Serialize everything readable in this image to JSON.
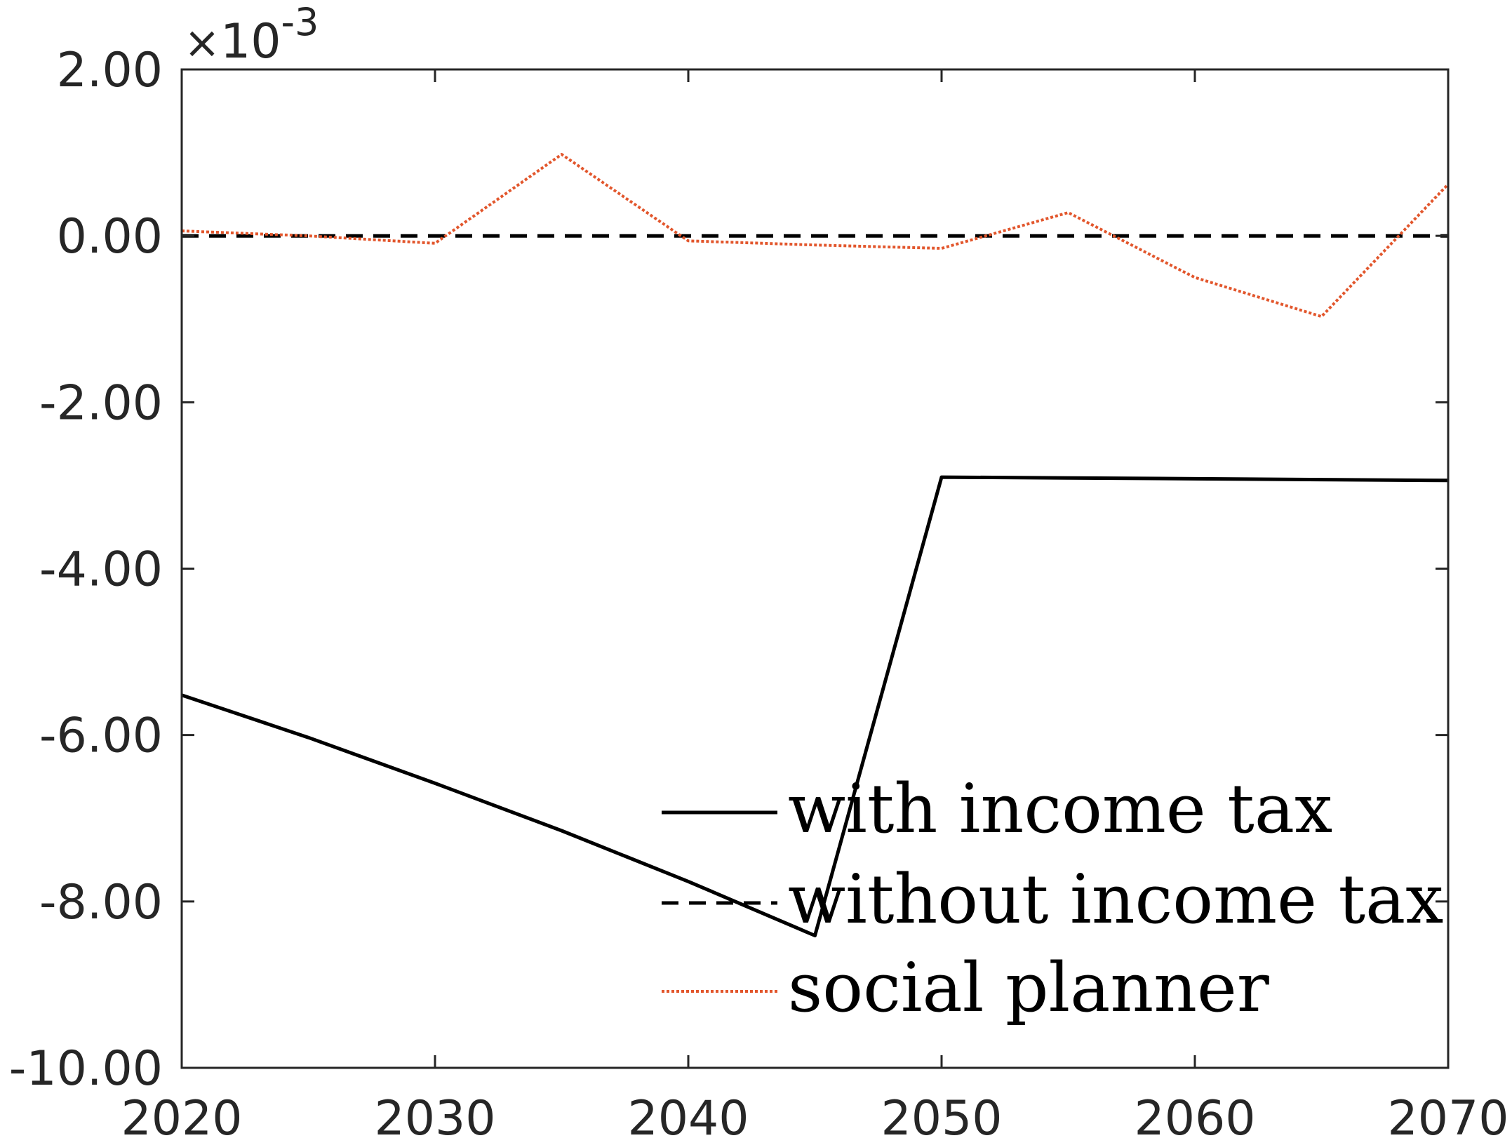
{
  "chart_data": {
    "type": "line",
    "title": "",
    "xlabel": "",
    "ylabel": "",
    "xlim": [
      2020,
      2070
    ],
    "ylim": [
      -10.0,
      2.0
    ],
    "y_exponent_label": {
      "times": "×",
      "base": "10",
      "power": "-3"
    },
    "x_ticks": [
      2020,
      2030,
      2040,
      2050,
      2060,
      2070
    ],
    "x_tick_labels": [
      "2020",
      "2030",
      "2040",
      "2050",
      "2060",
      "2070"
    ],
    "y_ticks": [
      2.0,
      0.0,
      -2.0,
      -4.0,
      -6.0,
      -8.0,
      -10.0
    ],
    "y_tick_labels": [
      "2.00",
      "0.00",
      "-2.00",
      "-4.00",
      "-6.00",
      "-8.00",
      "-10.00"
    ],
    "grid": false,
    "legend_position": "bottom-right",
    "series": [
      {
        "name": "with income tax",
        "color": "#000000",
        "style": "solid",
        "x": [
          2020,
          2025,
          2030,
          2035,
          2040,
          2045,
          2050,
          2055,
          2060,
          2065,
          2070
        ],
        "y": [
          -5.52,
          -6.03,
          -6.58,
          -7.15,
          -7.76,
          -8.41,
          -2.9,
          -2.91,
          -2.92,
          -2.93,
          -2.94
        ]
      },
      {
        "name": "without income tax",
        "color": "#000000",
        "style": "dashed",
        "x": [
          2020,
          2025,
          2030,
          2035,
          2040,
          2045,
          2050,
          2055,
          2060,
          2065,
          2070
        ],
        "y": [
          0,
          0,
          0,
          0,
          0,
          0,
          0,
          0,
          0,
          0,
          0
        ]
      },
      {
        "name": "social planner",
        "color": "#e2562c",
        "style": "dotted",
        "x": [
          2020,
          2025,
          2030,
          2035,
          2040,
          2045,
          2050,
          2055,
          2060,
          2065,
          2070
        ],
        "y": [
          0.06,
          0.0,
          -0.09,
          0.98,
          -0.06,
          -0.11,
          -0.15,
          0.28,
          -0.5,
          -0.97,
          0.62
        ]
      }
    ]
  }
}
